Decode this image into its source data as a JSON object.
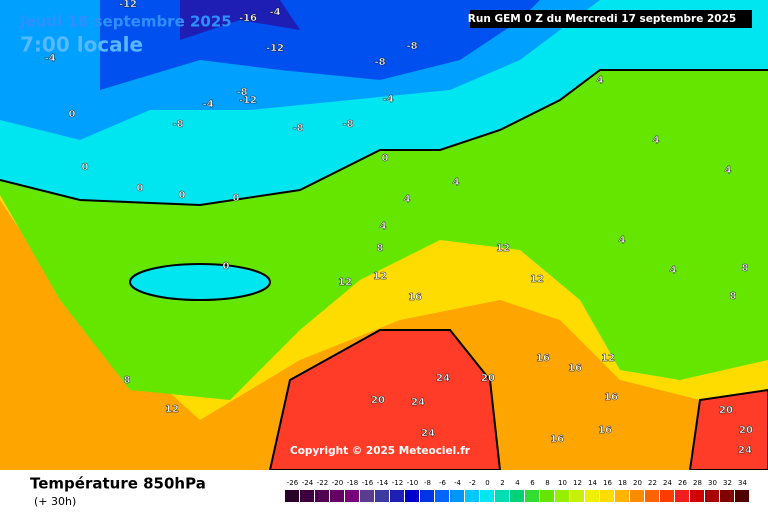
{
  "header": {
    "date": "Jeudi 18 septembre 2025",
    "time": "7:00 locale",
    "run": "Run GEM 0 Z du Mercredi 17 septembre 2025"
  },
  "copyright": "Copyright © 2025 Meteociel.fr",
  "footer": {
    "title": "Température 850hPa",
    "lead": "(+ 30h)"
  },
  "legend": {
    "values": [
      -26,
      -24,
      -22,
      -20,
      -18,
      -16,
      -14,
      -12,
      -10,
      -8,
      -6,
      -4,
      -2,
      0,
      2,
      4,
      6,
      8,
      10,
      12,
      14,
      16,
      18,
      20,
      22,
      24,
      26,
      28,
      30,
      32,
      34
    ],
    "colors": [
      "#280028",
      "#3c003c",
      "#500050",
      "#640064",
      "#780078",
      "#5a3c8c",
      "#3c3ca0",
      "#1e1eb4",
      "#0000c8",
      "#0032e6",
      "#0064ff",
      "#0096ff",
      "#00c8ff",
      "#00e6f0",
      "#00dcb4",
      "#00d278",
      "#32dc32",
      "#64e600",
      "#96f000",
      "#c8f000",
      "#f0f000",
      "#ffdc00",
      "#ffb400",
      "#ff8c00",
      "#ff6400",
      "#ff3c00",
      "#f01e1e",
      "#d20000",
      "#aa0000",
      "#820000",
      "#500000"
    ]
  },
  "map_labels": [
    -12,
    -16,
    -4,
    -12,
    -8,
    -8,
    -8,
    -4,
    -4,
    -8,
    -12,
    -4,
    -8,
    -8,
    0,
    0,
    0,
    0,
    0,
    0,
    0,
    4,
    4,
    4,
    4,
    4,
    4,
    4,
    4,
    8,
    8,
    8,
    12,
    12,
    12,
    12,
    16,
    16,
    16,
    12,
    16,
    20,
    24,
    24,
    20,
    24,
    16,
    16,
    20,
    20,
    24,
    8,
    12
  ]
}
